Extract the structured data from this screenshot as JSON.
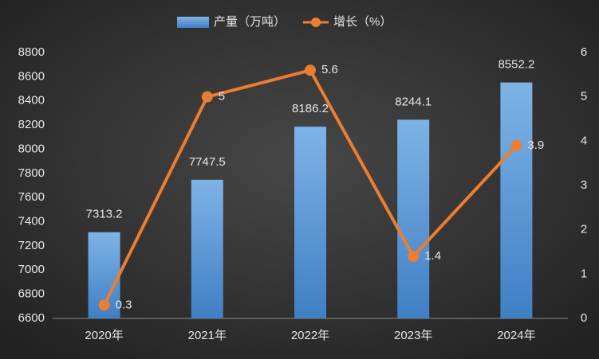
{
  "chart_data": {
    "type": "bar",
    "categories": [
      "2020年",
      "2021年",
      "2022年",
      "2023年",
      "2024年"
    ],
    "series": [
      {
        "name": "产量（万吨）",
        "color": "#5b9bd5",
        "values": [
          7313.2,
          7747.5,
          8186.2,
          8244.1,
          8552.2
        ]
      },
      {
        "name": "增长（%）",
        "color": "#ed7d31",
        "type": "line",
        "axis": "y2",
        "values": [
          0.3,
          5,
          5.6,
          1.4,
          3.9
        ]
      }
    ],
    "ylim": [
      6600,
      8800
    ],
    "yticks": [
      6600,
      6800,
      7000,
      7200,
      7400,
      7600,
      7800,
      8000,
      8200,
      8400,
      8600,
      8800
    ],
    "y2lim": [
      0,
      6
    ],
    "y2ticks": [
      0,
      1,
      2,
      3,
      4,
      5,
      6
    ],
    "grid": false,
    "legend": "top"
  }
}
